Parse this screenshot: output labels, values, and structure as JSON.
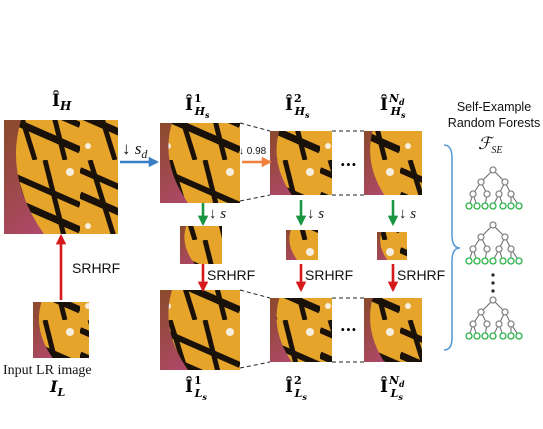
{
  "labels": {
    "top_hr": "Î",
    "top_hr_sub": "H",
    "hs_base": "Î",
    "hs_sub": "H",
    "hs_subsub": "s",
    "hs_sup": [
      "1",
      "2",
      "N"
    ],
    "hs_sup_sub": "d",
    "ls_sub": "L",
    "ls_subsub": "s",
    "ls_sup": [
      "1",
      "2",
      "N"
    ],
    "ls_sup_sub": "d",
    "input_lr": "Input LR image",
    "input_lr_sym": "I",
    "input_lr_sub": "L",
    "srhrf": "SRHRF",
    "down_sd": "↓ s",
    "down_sd_sub": "d",
    "down_s": "↓ s",
    "factor": "↓ 0.98",
    "dots": "···",
    "forest_title_1": "Self-Example",
    "forest_title_2": "Random Forests",
    "forest_sym": "ℱ",
    "forest_sym_sub": "SE"
  },
  "colors": {
    "arrow_red": "#d7191c",
    "arrow_green": "#1a9641",
    "arrow_blue": "#3a7fc4",
    "arrow_orange": "#f0803c",
    "brace": "#5b9bd5",
    "tree_node": "#888888",
    "tree_leaf": "#2db34a"
  }
}
